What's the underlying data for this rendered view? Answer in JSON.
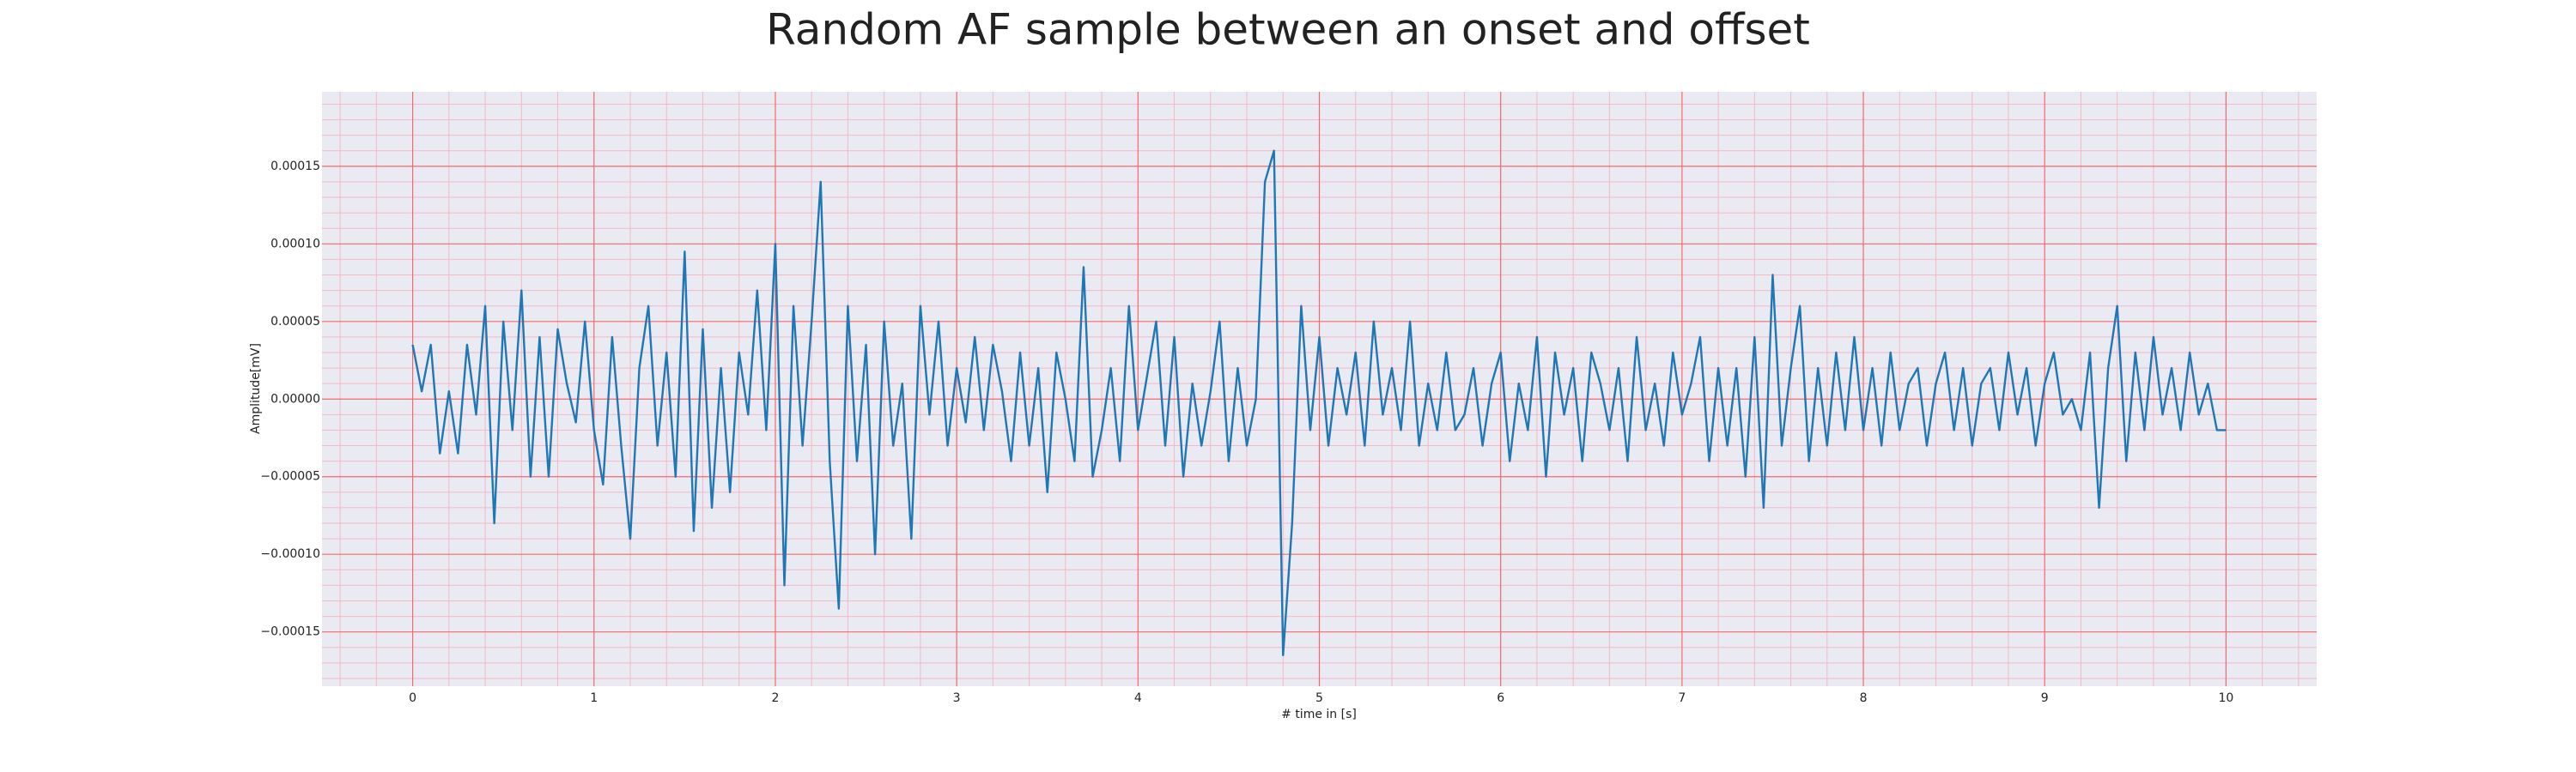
{
  "chart_data": {
    "type": "line",
    "title": "Random AF sample between an onset and offset",
    "xlabel": "# time in [s]",
    "ylabel": "Amplitude[mV]",
    "xlim": [
      -0.5,
      10.5
    ],
    "ylim": [
      -0.000185,
      0.000198
    ],
    "xticks": [
      0,
      1,
      2,
      3,
      4,
      5,
      6,
      7,
      8,
      9,
      10
    ],
    "yticks": [
      {
        "value": -0.00015,
        "label": "−0.00015"
      },
      {
        "value": -0.0001,
        "label": "−0.00010"
      },
      {
        "value": -5e-05,
        "label": "−0.00005"
      },
      {
        "value": 0,
        "label": "0.00000"
      },
      {
        "value": 5e-05,
        "label": "0.00005"
      },
      {
        "value": 0.0001,
        "label": "0.00010"
      },
      {
        "value": 0.00015,
        "label": "0.00015"
      }
    ],
    "grid": true,
    "minor_grid": true,
    "grid_color": "#f26b6b",
    "minor_grid_color": "#f3b9c4",
    "background": "#eaeaf2",
    "series": [
      {
        "color": "#1f77b4",
        "x": [
          0,
          0.05,
          0.1,
          0.15,
          0.2,
          0.25,
          0.3,
          0.35,
          0.4,
          0.45,
          0.5,
          0.55,
          0.6,
          0.65,
          0.7,
          0.75,
          0.8,
          0.85,
          0.9,
          0.95,
          1,
          1.05,
          1.1,
          1.15,
          1.2,
          1.25,
          1.3,
          1.35,
          1.4,
          1.45,
          1.5,
          1.55,
          1.6,
          1.65,
          1.7,
          1.75,
          1.8,
          1.85,
          1.9,
          1.95,
          2,
          2.05,
          2.1,
          2.15,
          2.2,
          2.25,
          2.3,
          2.35,
          2.4,
          2.45,
          2.5,
          2.55,
          2.6,
          2.65,
          2.7,
          2.75,
          2.8,
          2.85,
          2.9,
          2.95,
          3,
          3.05,
          3.1,
          3.15,
          3.2,
          3.25,
          3.3,
          3.35,
          3.4,
          3.45,
          3.5,
          3.55,
          3.6,
          3.65,
          3.7,
          3.75,
          3.8,
          3.85,
          3.9,
          3.95,
          4,
          4.05,
          4.1,
          4.15,
          4.2,
          4.25,
          4.3,
          4.35,
          4.4,
          4.45,
          4.5,
          4.55,
          4.6,
          4.65,
          4.7,
          4.75,
          4.8,
          4.85,
          4.9,
          4.95,
          5,
          5.05,
          5.1,
          5.15,
          5.2,
          5.25,
          5.3,
          5.35,
          5.4,
          5.45,
          5.5,
          5.55,
          5.6,
          5.65,
          5.7,
          5.75,
          5.8,
          5.85,
          5.9,
          5.95,
          6,
          6.05,
          6.1,
          6.15,
          6.2,
          6.25,
          6.3,
          6.35,
          6.4,
          6.45,
          6.5,
          6.55,
          6.6,
          6.65,
          6.7,
          6.75,
          6.8,
          6.85,
          6.9,
          6.95,
          7,
          7.05,
          7.1,
          7.15,
          7.2,
          7.25,
          7.3,
          7.35,
          7.4,
          7.45,
          7.5,
          7.55,
          7.6,
          7.65,
          7.7,
          7.75,
          7.8,
          7.85,
          7.9,
          7.95,
          8,
          8.05,
          8.1,
          8.15,
          8.2,
          8.25,
          8.3,
          8.35,
          8.4,
          8.45,
          8.5,
          8.55,
          8.6,
          8.65,
          8.7,
          8.75,
          8.8,
          8.85,
          8.9,
          8.95,
          9,
          9.05,
          9.1,
          9.15,
          9.2,
          9.25,
          9.3,
          9.35,
          9.4,
          9.45,
          9.5,
          9.55,
          9.6,
          9.65,
          9.7,
          9.75,
          9.8,
          9.85,
          9.9,
          9.95,
          10
        ],
        "values": [
          3.5e-05,
          5e-06,
          3.5e-05,
          -3.5e-05,
          5e-06,
          -3.5e-05,
          3.5e-05,
          -1e-05,
          6e-05,
          -8e-05,
          5e-05,
          -2e-05,
          7e-05,
          -5e-05,
          4e-05,
          -5e-05,
          4.5e-05,
          1e-05,
          -1.5e-05,
          5e-05,
          -2e-05,
          -5.5e-05,
          4e-05,
          -3e-05,
          -9e-05,
          2e-05,
          6e-05,
          -3e-05,
          3e-05,
          -5e-05,
          9.5e-05,
          -8.5e-05,
          4.5e-05,
          -7e-05,
          2e-05,
          -6e-05,
          3e-05,
          -1e-05,
          7e-05,
          -2e-05,
          0.0001,
          -0.00012,
          6e-05,
          -3e-05,
          5e-05,
          0.00014,
          -4e-05,
          -0.000135,
          6e-05,
          -4e-05,
          3.5e-05,
          -0.0001,
          5e-05,
          -3e-05,
          1e-05,
          -9e-05,
          6e-05,
          -1e-05,
          5e-05,
          -3e-05,
          2e-05,
          -1.5e-05,
          4e-05,
          -2e-05,
          3.5e-05,
          5e-06,
          -4e-05,
          3e-05,
          -3e-05,
          2e-05,
          -6e-05,
          3e-05,
          0,
          -4e-05,
          8.5e-05,
          -5e-05,
          -2e-05,
          2e-05,
          -4e-05,
          6e-05,
          -2e-05,
          1.5e-05,
          5e-05,
          -3e-05,
          4e-05,
          -5e-05,
          1e-05,
          -3e-05,
          5e-06,
          5e-05,
          -4e-05,
          2e-05,
          -3e-05,
          0,
          0.00014,
          0.00016,
          -0.000165,
          -8e-05,
          6e-05,
          -2e-05,
          4e-05,
          -3e-05,
          2e-05,
          -1e-05,
          3e-05,
          -3e-05,
          5e-05,
          -1e-05,
          2e-05,
          -2e-05,
          5e-05,
          -3e-05,
          1e-05,
          -2e-05,
          3e-05,
          -2e-05,
          -1e-05,
          2e-05,
          -3e-05,
          1e-05,
          3e-05,
          -4e-05,
          1e-05,
          -2e-05,
          4e-05,
          -5e-05,
          3e-05,
          -1e-05,
          2e-05,
          -4e-05,
          3e-05,
          1e-05,
          -2e-05,
          2e-05,
          -4e-05,
          4e-05,
          -2e-05,
          1e-05,
          -3e-05,
          3e-05,
          -1e-05,
          1e-05,
          4e-05,
          -4e-05,
          2e-05,
          -3e-05,
          2e-05,
          -5e-05,
          4e-05,
          -7e-05,
          8e-05,
          -3e-05,
          2e-05,
          6e-05,
          -4e-05,
          2e-05,
          -3e-05,
          3e-05,
          -2e-05,
          4e-05,
          -2e-05,
          2e-05,
          -3e-05,
          3e-05,
          -2e-05,
          1e-05,
          2e-05,
          -3e-05,
          1e-05,
          3e-05,
          -2e-05,
          2e-05,
          -3e-05,
          1e-05,
          2e-05,
          -2e-05,
          3e-05,
          -1e-05,
          2e-05,
          -3e-05,
          1e-05,
          3e-05,
          -1e-05,
          0,
          -2e-05,
          3e-05,
          -7e-05,
          2e-05,
          6e-05,
          -4e-05,
          3e-05,
          -2e-05,
          4e-05,
          -1e-05,
          2e-05,
          -2e-05,
          3e-05,
          -1e-05,
          1e-05,
          -2e-05,
          -2e-05
        ]
      }
    ]
  }
}
